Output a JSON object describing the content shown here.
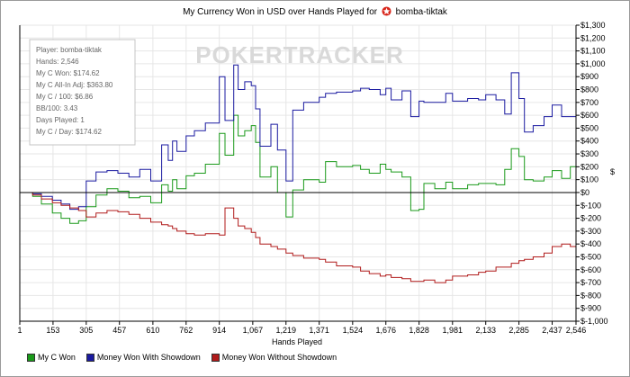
{
  "header": {
    "title_prefix": "My Currency Won in USD over Hands Played for",
    "player": "bomba-tiktak",
    "logo_icon": "pokerstars-icon"
  },
  "watermark": {
    "text": "POKERTRACKER"
  },
  "stats": [
    "Player: bomba-tiktak",
    "Hands: 2,546",
    "My C Won: $174.62",
    "My C All-In Adj: $363.80",
    "My C / 100: $6.86",
    "BB/100: 3.43",
    "Days Played: 1",
    "My C / Day: $174.62"
  ],
  "chart_data": {
    "type": "line",
    "title": "My Currency Won in USD over Hands Played for bomba-tiktak",
    "xlabel": "Hands Played",
    "ylabel": "$",
    "xlim": [
      1,
      2546
    ],
    "ylim": [
      -1000,
      1300
    ],
    "x_ticks": [
      1,
      153,
      305,
      457,
      610,
      762,
      914,
      1067,
      1219,
      1371,
      1524,
      1676,
      1828,
      1981,
      2133,
      2285,
      2437,
      2546
    ],
    "y_ticks": [
      -1000,
      -900,
      -800,
      -700,
      -600,
      -500,
      -400,
      -300,
      -200,
      -100,
      0,
      100,
      200,
      300,
      400,
      500,
      600,
      700,
      800,
      900,
      1000,
      1100,
      1200,
      1300
    ],
    "y_tick_labels": [
      "$-1,000",
      "$-900",
      "$-800",
      "$-700",
      "$-600",
      "$-500",
      "$-400",
      "$-300",
      "$-200",
      "$-100",
      "$0",
      "$100",
      "$200",
      "$300",
      "$400",
      "$500",
      "$600",
      "$700",
      "$800",
      "$900",
      "$1,000",
      "$1,100",
      "$1,200",
      "$1,300"
    ],
    "legend_position": "bottom-left",
    "series": [
      {
        "name": "My C Won",
        "color": "#1a9a1a",
        "x": [
          1,
          60,
          100,
          150,
          190,
          230,
          270,
          305,
          350,
          400,
          450,
          500,
          550,
          600,
          650,
          680,
          700,
          720,
          762,
          800,
          850,
          914,
          940,
          980,
          1000,
          1030,
          1060,
          1080,
          1100,
          1150,
          1180,
          1219,
          1250,
          1300,
          1371,
          1400,
          1450,
          1524,
          1560,
          1600,
          1650,
          1676,
          1700,
          1750,
          1790,
          1828,
          1850,
          1900,
          1950,
          1981,
          2050,
          2100,
          2133,
          2180,
          2220,
          2250,
          2285,
          2310,
          2350,
          2400,
          2437,
          2480,
          2520,
          2546
        ],
        "y": [
          0,
          -30,
          -90,
          -160,
          -200,
          -240,
          -220,
          -110,
          -20,
          30,
          10,
          -40,
          -30,
          -80,
          60,
          10,
          100,
          30,
          130,
          150,
          220,
          460,
          290,
          600,
          440,
          480,
          520,
          390,
          120,
          200,
          0,
          -190,
          20,
          100,
          80,
          240,
          200,
          210,
          180,
          150,
          220,
          180,
          160,
          120,
          -140,
          -130,
          70,
          30,
          80,
          30,
          60,
          70,
          70,
          60,
          180,
          340,
          280,
          100,
          90,
          120,
          170,
          110,
          200,
          170
        ]
      },
      {
        "name": "Money Won With Showdown",
        "color": "#1a1aa0",
        "x": [
          1,
          60,
          100,
          150,
          190,
          230,
          270,
          305,
          350,
          400,
          450,
          500,
          550,
          600,
          650,
          680,
          700,
          720,
          762,
          800,
          850,
          914,
          940,
          980,
          1000,
          1030,
          1060,
          1080,
          1100,
          1150,
          1180,
          1219,
          1250,
          1300,
          1371,
          1400,
          1450,
          1524,
          1560,
          1600,
          1650,
          1676,
          1700,
          1750,
          1790,
          1828,
          1850,
          1900,
          1950,
          1981,
          2050,
          2100,
          2133,
          2180,
          2220,
          2250,
          2285,
          2310,
          2350,
          2400,
          2437,
          2480,
          2520,
          2546
        ],
        "y": [
          0,
          -10,
          -30,
          -60,
          -90,
          -130,
          -110,
          90,
          160,
          170,
          150,
          120,
          180,
          90,
          370,
          250,
          400,
          320,
          440,
          480,
          540,
          900,
          560,
          990,
          800,
          860,
          830,
          650,
          360,
          530,
          330,
          90,
          640,
          700,
          740,
          770,
          780,
          790,
          810,
          800,
          760,
          810,
          720,
          790,
          590,
          710,
          700,
          700,
          770,
          710,
          730,
          720,
          760,
          720,
          610,
          930,
          730,
          470,
          520,
          590,
          680,
          590,
          590,
          580
        ]
      },
      {
        "name": "Money Won Without Showdown",
        "color": "#b01a1a",
        "x": [
          1,
          60,
          100,
          150,
          190,
          230,
          270,
          305,
          350,
          400,
          450,
          500,
          550,
          600,
          650,
          680,
          700,
          720,
          762,
          800,
          850,
          914,
          940,
          980,
          1000,
          1030,
          1060,
          1080,
          1100,
          1150,
          1180,
          1219,
          1250,
          1300,
          1371,
          1400,
          1450,
          1524,
          1560,
          1600,
          1650,
          1676,
          1700,
          1750,
          1790,
          1828,
          1850,
          1900,
          1950,
          1981,
          2050,
          2100,
          2133,
          2180,
          2220,
          2250,
          2285,
          2310,
          2350,
          2400,
          2437,
          2480,
          2520,
          2546
        ],
        "y": [
          0,
          -20,
          -50,
          -80,
          -100,
          -120,
          -140,
          -190,
          -160,
          -140,
          -150,
          -170,
          -200,
          -230,
          -250,
          -260,
          -280,
          -300,
          -320,
          -330,
          -320,
          -330,
          -120,
          -200,
          -260,
          -280,
          -310,
          -350,
          -400,
          -420,
          -440,
          -470,
          -490,
          -510,
          -520,
          -540,
          -570,
          -580,
          -610,
          -630,
          -650,
          -640,
          -660,
          -670,
          -690,
          -690,
          -680,
          -700,
          -680,
          -650,
          -640,
          -620,
          -610,
          -580,
          -580,
          -550,
          -530,
          -520,
          -500,
          -470,
          -420,
          -400,
          -420,
          -380
        ]
      }
    ]
  }
}
